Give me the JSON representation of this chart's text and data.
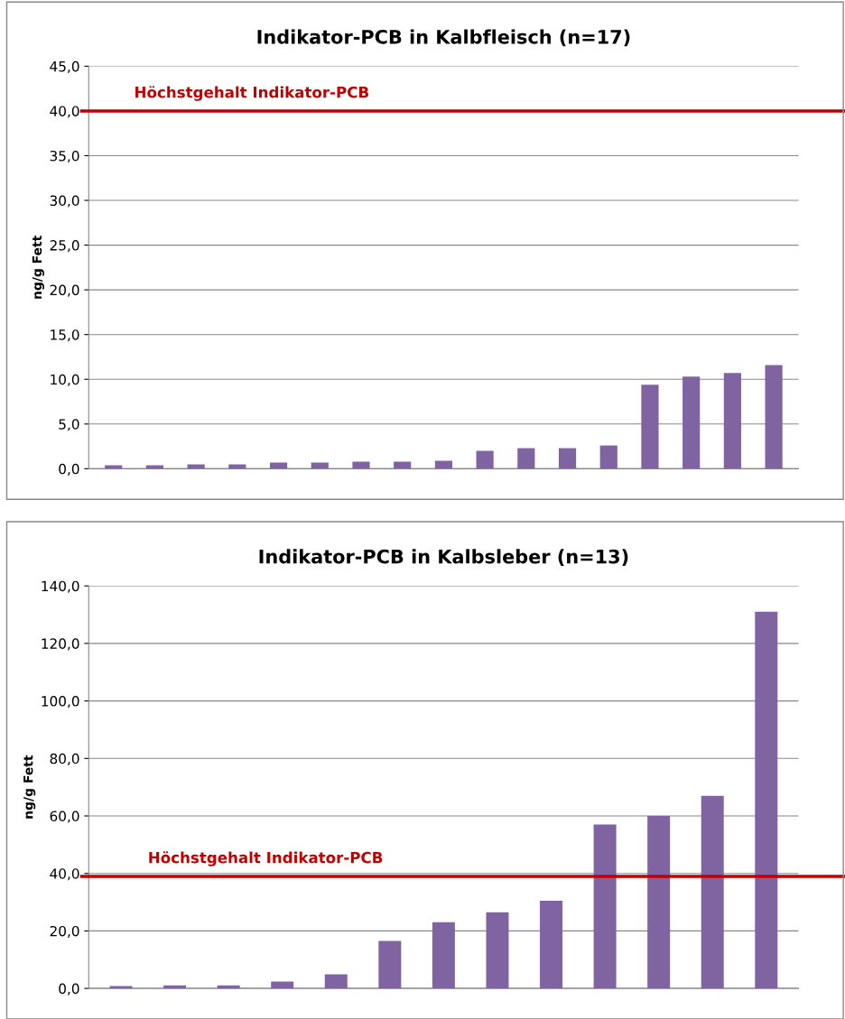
{
  "chart_data": [
    {
      "type": "bar",
      "title": "Indikator-PCB in Kalbfleisch (n=17)",
      "ylabel": "ng/g Fett",
      "categories": [
        null,
        null,
        null,
        null,
        null,
        null,
        null,
        null,
        null,
        null,
        null,
        null,
        null,
        null,
        null,
        null,
        null
      ],
      "values": [
        0.4,
        0.4,
        0.5,
        0.5,
        0.7,
        0.7,
        0.8,
        0.8,
        0.9,
        2.0,
        2.3,
        2.3,
        2.6,
        9.4,
        10.3,
        10.7,
        11.6
      ],
      "color": "#8064a2",
      "ylim": [
        0,
        45
      ],
      "yticks": [
        {
          "value": 0,
          "label": "0,0"
        },
        {
          "value": 5,
          "label": "5,0"
        },
        {
          "value": 10,
          "label": "10,0"
        },
        {
          "value": 15,
          "label": "15,0"
        },
        {
          "value": 20,
          "label": "20,0"
        },
        {
          "value": 25,
          "label": "25,0"
        },
        {
          "value": 30,
          "label": "30,0"
        },
        {
          "value": 35,
          "label": "35,0"
        },
        {
          "value": 40,
          "label": "40,0"
        },
        {
          "value": 45,
          "label": "45,0"
        }
      ],
      "grid": "y",
      "ref_lines": [
        {
          "axis": "y",
          "value": 40,
          "label": "Höchstgehalt Indikator-PCB",
          "color": "#c00000"
        }
      ]
    },
    {
      "type": "bar",
      "title": "Indikator-PCB in Kalbsleber (n=13)",
      "ylabel": "ng/g Fett",
      "categories": [
        null,
        null,
        null,
        null,
        null,
        null,
        null,
        null,
        null,
        null,
        null,
        null,
        null
      ],
      "values": [
        0.8,
        1.1,
        1.1,
        2.4,
        4.9,
        16.5,
        23,
        26.5,
        30.5,
        57,
        60,
        67,
        131
      ],
      "color": "#8064a2",
      "ylim": [
        0,
        140
      ],
      "yticks": [
        {
          "value": 0,
          "label": "0,0"
        },
        {
          "value": 20,
          "label": "20,0"
        },
        {
          "value": 40,
          "label": "40,0"
        },
        {
          "value": 60,
          "label": "60,0"
        },
        {
          "value": 80,
          "label": "80,0"
        },
        {
          "value": 100,
          "label": "100,0"
        },
        {
          "value": 120,
          "label": "120,0"
        },
        {
          "value": 140,
          "label": "140,0"
        }
      ],
      "grid": "y",
      "ref_lines": [
        {
          "axis": "y",
          "value": 39,
          "label": "Höchstgehalt Indikator-PCB",
          "color": "#c00000"
        }
      ]
    }
  ]
}
